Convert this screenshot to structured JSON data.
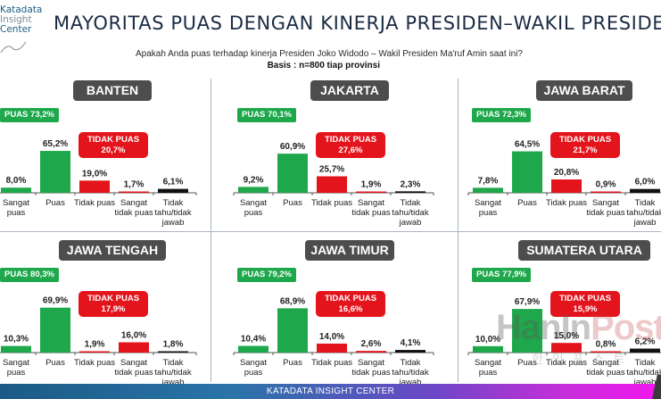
{
  "header": {
    "logo_lines": [
      "Katadata",
      "Insight",
      "Center"
    ],
    "title": "MAYORITAS PUAS DENGAN KINERJA PRESIDEN–WAKIL PRESIDEN",
    "question": "Apakah Anda puas terhadap kinerja Presiden Joko Widodo – Wakil Presiden Ma'ruf Amin saat ini?",
    "basis": "Basis : n=800 tiap provinsi"
  },
  "footer": {
    "label": "KATADATA INSIGHT CENTER"
  },
  "watermark": {
    "brand_part1": "HanIn",
    "brand_part2": "Post",
    "sub": "한인포스트"
  },
  "colors": {
    "puas_green": "#1ea84b",
    "tidak_red": "#e3141b",
    "tidak_tahu_black": "#111111",
    "region_label_bg": "#4d4d4d"
  },
  "chart_data": [
    {
      "type": "bar",
      "title": "BANTEN",
      "categories": [
        "Sangat puas",
        "Puas",
        "Tidak puas",
        "Sangat tidak puas",
        "Tidak tahu/tidak jawab"
      ],
      "category_lines": [
        [
          "Sangat",
          "puas"
        ],
        [
          "Puas"
        ],
        [
          "Tidak puas"
        ],
        [
          "Sangat",
          "tidak puas"
        ],
        [
          "Tidak",
          "tahu/tidak",
          "jawab"
        ]
      ],
      "values": [
        8.0,
        65.2,
        19.0,
        1.7,
        6.1
      ],
      "value_labels": [
        "8,0%",
        "65,2%",
        "19,0%",
        "1,7%",
        "6,1%"
      ],
      "bar_colors": [
        "#1ea84b",
        "#1ea84b",
        "#e3141b",
        "#e3141b",
        "#111111"
      ],
      "puas_total_label": "PUAS 73,2%",
      "tidak_puas_label": [
        "TIDAK PUAS",
        "20,7%"
      ],
      "ylim": [
        0,
        100
      ]
    },
    {
      "type": "bar",
      "title": "JAKARTA",
      "categories": [
        "Sangat puas",
        "Puas",
        "Tidak puas",
        "Sangat tidak puas",
        "Tidak tahu/tidak jawab"
      ],
      "category_lines": [
        [
          "Sangat",
          "puas"
        ],
        [
          "Puas"
        ],
        [
          "Tidak puas"
        ],
        [
          "Sangat",
          "tidak puas"
        ],
        [
          "Tidak",
          "tahu/tidak",
          "jawab"
        ]
      ],
      "values": [
        9.2,
        60.9,
        25.7,
        1.9,
        2.3
      ],
      "value_labels": [
        "9,2%",
        "60,9%",
        "25,7%",
        "1,9%",
        "2,3%"
      ],
      "bar_colors": [
        "#1ea84b",
        "#1ea84b",
        "#e3141b",
        "#e3141b",
        "#111111"
      ],
      "puas_total_label": "PUAS 70,1%",
      "tidak_puas_label": [
        "TIDAK PUAS",
        "27,6%"
      ],
      "ylim": [
        0,
        100
      ]
    },
    {
      "type": "bar",
      "title": "JAWA BARAT",
      "categories": [
        "Sangat puas",
        "Puas",
        "Tidak puas",
        "Sangat tidak puas",
        "Tidak tahu/tidak jawab"
      ],
      "category_lines": [
        [
          "Sangat",
          "puas"
        ],
        [
          "Puas"
        ],
        [
          "Tidak puas"
        ],
        [
          "Sangat",
          "tidak puas"
        ],
        [
          "Tidak",
          "tahu/tidak",
          "jawab"
        ]
      ],
      "values": [
        7.8,
        64.5,
        20.8,
        0.9,
        6.0
      ],
      "value_labels": [
        "7,8%",
        "64,5%",
        "20,8%",
        "0,9%",
        "6,0%"
      ],
      "bar_colors": [
        "#1ea84b",
        "#1ea84b",
        "#e3141b",
        "#e3141b",
        "#111111"
      ],
      "puas_total_label": "PUAS 72,3%",
      "tidak_puas_label": [
        "TIDAK PUAS",
        "21,7%"
      ],
      "ylim": [
        0,
        100
      ]
    },
    {
      "type": "bar",
      "title": "JAWA TENGAH",
      "categories": [
        "Sangat puas",
        "Puas",
        "Tidak puas",
        "Sangat tidak puas",
        "Tidak tahu/tidak jawab"
      ],
      "category_lines": [
        [
          "Sangat",
          "puas"
        ],
        [
          "Puas"
        ],
        [
          "Tidak puas"
        ],
        [
          "Sangat",
          "tidak puas"
        ],
        [
          "Tidak",
          "tahu/tidak",
          "jawab"
        ]
      ],
      "values": [
        10.3,
        69.9,
        1.9,
        16.0,
        1.8
      ],
      "value_labels": [
        "10,3%",
        "69,9%",
        "1,9%",
        "16,0%",
        "1,8%"
      ],
      "bar_colors": [
        "#1ea84b",
        "#1ea84b",
        "#e3141b",
        "#e3141b",
        "#111111"
      ],
      "puas_total_label": "PUAS 80,3%",
      "tidak_puas_label": [
        "TIDAK PUAS",
        "17,9%"
      ],
      "ylim": [
        0,
        100
      ]
    },
    {
      "type": "bar",
      "title": "JAWA TIMUR",
      "categories": [
        "Sangat puas",
        "Puas",
        "Tidak puas",
        "Sangat tidak puas",
        "Tidak tahu/tidak jawab"
      ],
      "category_lines": [
        [
          "Sangat",
          "puas"
        ],
        [
          "Puas"
        ],
        [
          "Tidak puas"
        ],
        [
          "Sangat",
          "tidak puas"
        ],
        [
          "Tidak",
          "tahu/tidak",
          "jawab"
        ]
      ],
      "values": [
        10.4,
        68.9,
        14.0,
        2.6,
        4.1
      ],
      "value_labels": [
        "10,4%",
        "68,9%",
        "14,0%",
        "2,6%",
        "4,1%"
      ],
      "bar_colors": [
        "#1ea84b",
        "#1ea84b",
        "#e3141b",
        "#e3141b",
        "#111111"
      ],
      "puas_total_label": "PUAS 79,2%",
      "tidak_puas_label": [
        "TIDAK PUAS",
        "16,6%"
      ],
      "ylim": [
        0,
        100
      ]
    },
    {
      "type": "bar",
      "title": "SUMATERA UTARA",
      "categories": [
        "Sangat puas",
        "Puas",
        "Tidak puas",
        "Sangat tidak puas",
        "Tidak tahu/tidak jawab"
      ],
      "category_lines": [
        [
          "Sangat",
          "puas"
        ],
        [
          "Puas"
        ],
        [
          "Tidak puas"
        ],
        [
          "Sangat",
          "tidak puas"
        ],
        [
          "Tidak",
          "tahu/tidak",
          "jawab"
        ]
      ],
      "values": [
        10.0,
        67.9,
        15.0,
        0.8,
        6.2
      ],
      "value_labels": [
        "10,0%",
        "67,9%",
        "15,0%",
        "0,8%",
        "6,2%"
      ],
      "bar_colors": [
        "#1ea84b",
        "#1ea84b",
        "#e3141b",
        "#e3141b",
        "#111111"
      ],
      "puas_total_label": "PUAS 77,9%",
      "tidak_puas_label": [
        "TIDAK PUAS",
        "15,9%"
      ],
      "ylim": [
        0,
        100
      ]
    }
  ]
}
